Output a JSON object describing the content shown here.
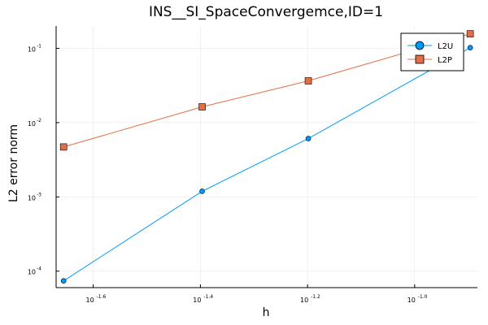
{
  "chart_data": {
    "type": "line",
    "title": "INS__SI_SpaceConvergemce,ID=1",
    "xlabel": "h",
    "ylabel": "L2 error norm",
    "xscale": "log",
    "yscale": "log",
    "xlim": [
      0.0214,
      0.131
    ],
    "ylim": [
      6e-05,
      0.2
    ],
    "grid": true,
    "legend_position": "top-right",
    "x_ticks": [
      {
        "value": 0.0251,
        "base": "10",
        "exp": "-1.6"
      },
      {
        "value": 0.0398,
        "base": "10",
        "exp": "-1.4"
      },
      {
        "value": 0.0631,
        "base": "10",
        "exp": "-1.2"
      },
      {
        "value": 0.1,
        "base": "10",
        "exp": "-1.0"
      }
    ],
    "y_ticks": [
      {
        "value": 0.0001,
        "base": "10",
        "exp": "-4"
      },
      {
        "value": 0.001,
        "base": "10",
        "exp": "-3"
      },
      {
        "value": 0.01,
        "base": "10",
        "exp": "-2"
      },
      {
        "value": 0.1,
        "base": "10",
        "exp": "-1"
      }
    ],
    "series": [
      {
        "name": "L2U",
        "color": "#009AFA",
        "marker": "circle",
        "x": [
          0.0221,
          0.0401,
          0.0633,
          0.127
        ],
        "y": [
          7.4e-05,
          0.00119,
          0.0061,
          0.102
        ]
      },
      {
        "name": "L2P",
        "color": "#E36F47",
        "marker": "square",
        "x": [
          0.0221,
          0.0401,
          0.0633,
          0.127
        ],
        "y": [
          0.0047,
          0.0163,
          0.0365,
          0.157
        ]
      }
    ]
  }
}
